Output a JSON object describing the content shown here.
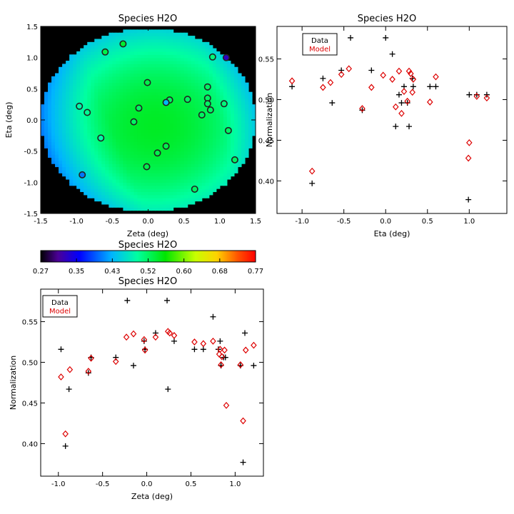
{
  "chart_data": [
    {
      "type": "heatmap",
      "title": "Species H2O",
      "xlabel": "Zeta (deg)",
      "ylabel": "Eta (deg)",
      "xlim": [
        -1.5,
        1.5
      ],
      "ylim": [
        -1.5,
        1.5
      ],
      "xticks": [
        "-1.5",
        "-1.0",
        "-0.5",
        "0.0",
        "0.5",
        "1.0",
        "1.5"
      ],
      "yticks": [
        "-1.5",
        "-1.0",
        "-0.5",
        "0.0",
        "0.5",
        "1.0",
        "1.5"
      ],
      "colors": {
        "outside": "#000000",
        "ring": "#222222"
      },
      "points": [
        {
          "x": -0.6,
          "y": 1.09,
          "v": 0.53
        },
        {
          "x": -0.35,
          "y": 1.22,
          "v": 0.54
        },
        {
          "x": 0.9,
          "y": 1.01,
          "v": 0.51
        },
        {
          "x": 1.09,
          "y": 1.0,
          "v": 0.33
        },
        {
          "x": -0.01,
          "y": 0.6,
          "v": 0.53
        },
        {
          "x": 0.83,
          "y": 0.53,
          "v": 0.52
        },
        {
          "x": -0.96,
          "y": 0.22,
          "v": 0.49
        },
        {
          "x": -0.85,
          "y": 0.12,
          "v": 0.5
        },
        {
          "x": -0.13,
          "y": 0.19,
          "v": 0.52
        },
        {
          "x": 0.3,
          "y": 0.32,
          "v": 0.52
        },
        {
          "x": 0.25,
          "y": 0.28,
          "v": 0.44
        },
        {
          "x": 0.55,
          "y": 0.33,
          "v": 0.52
        },
        {
          "x": 0.83,
          "y": 0.35,
          "v": 0.52
        },
        {
          "x": 0.83,
          "y": 0.26,
          "v": 0.52
        },
        {
          "x": 1.06,
          "y": 0.26,
          "v": 0.51
        },
        {
          "x": 0.87,
          "y": 0.16,
          "v": 0.52
        },
        {
          "x": 0.75,
          "y": 0.08,
          "v": 0.52
        },
        {
          "x": -0.2,
          "y": -0.03,
          "v": 0.52
        },
        {
          "x": 1.12,
          "y": -0.17,
          "v": 0.52
        },
        {
          "x": -0.66,
          "y": -0.29,
          "v": 0.49
        },
        {
          "x": 0.25,
          "y": -0.42,
          "v": 0.53
        },
        {
          "x": 0.13,
          "y": -0.53,
          "v": 0.53
        },
        {
          "x": 1.21,
          "y": -0.64,
          "v": 0.52
        },
        {
          "x": -0.02,
          "y": -0.75,
          "v": 0.53
        },
        {
          "x": -0.92,
          "y": -0.88,
          "v": 0.41
        },
        {
          "x": 0.65,
          "y": -1.11,
          "v": 0.52
        }
      ]
    },
    {
      "type": "colorbar",
      "title": "Species H2O",
      "range": [
        0.27,
        0.77
      ],
      "ticks": [
        "0.27",
        "0.35",
        "0.43",
        "0.52",
        "0.60",
        "0.68",
        "0.77"
      ]
    },
    {
      "type": "scatter",
      "title": "Species H2O",
      "xlabel": "Eta (deg)",
      "ylabel": "Normalization",
      "xlim": [
        -1.3,
        1.45
      ],
      "ylim": [
        0.36,
        0.59
      ],
      "xticks": [
        {
          "v": -1.0,
          "label": "-1.0"
        },
        {
          "v": -0.5,
          "label": "-0.5"
        },
        {
          "v": 0.0,
          "label": "0.0"
        },
        {
          "v": 0.5,
          "label": "0.5"
        },
        {
          "v": 1.0,
          "label": "1.0"
        }
      ],
      "yticks": [
        {
          "v": 0.4,
          "label": "0.40"
        },
        {
          "v": 0.45,
          "label": "0.45"
        },
        {
          "v": 0.5,
          "label": "0.50"
        },
        {
          "v": 0.55,
          "label": "0.55"
        }
      ],
      "legend": {
        "position": "top-left",
        "data_label": "Data",
        "model_label": "Model"
      },
      "colors": {
        "data": "#000000",
        "model": "#dd0000"
      },
      "series": [
        {
          "name": "Data",
          "marker": "plus",
          "points": [
            [
              -1.12,
              0.516
            ],
            [
              -0.88,
              0.397
            ],
            [
              -0.75,
              0.526
            ],
            [
              -0.64,
              0.496
            ],
            [
              -0.53,
              0.536
            ],
            [
              -0.42,
              0.576
            ],
            [
              -0.28,
              0.487
            ],
            [
              -0.17,
              0.536
            ],
            [
              0.0,
              0.576
            ],
            [
              0.08,
              0.556
            ],
            [
              0.12,
              0.467
            ],
            [
              0.16,
              0.506
            ],
            [
              0.19,
              0.496
            ],
            [
              0.22,
              0.516
            ],
            [
              0.26,
              0.496
            ],
            [
              0.28,
              0.467
            ],
            [
              0.32,
              0.526
            ],
            [
              0.33,
              0.516
            ],
            [
              0.53,
              0.516
            ],
            [
              0.6,
              0.516
            ],
            [
              0.99,
              0.377
            ],
            [
              1.0,
              0.506
            ],
            [
              1.09,
              0.506
            ],
            [
              1.21,
              0.506
            ]
          ]
        },
        {
          "name": "Model",
          "marker": "diamond",
          "points": [
            [
              -1.12,
              0.523
            ],
            [
              -0.88,
              0.412
            ],
            [
              -0.75,
              0.515
            ],
            [
              -0.66,
              0.521
            ],
            [
              -0.53,
              0.531
            ],
            [
              -0.44,
              0.538
            ],
            [
              -0.28,
              0.489
            ],
            [
              -0.17,
              0.515
            ],
            [
              -0.03,
              0.53
            ],
            [
              0.08,
              0.525
            ],
            [
              0.12,
              0.491
            ],
            [
              0.16,
              0.535
            ],
            [
              0.19,
              0.483
            ],
            [
              0.22,
              0.51
            ],
            [
              0.26,
              0.498
            ],
            [
              0.28,
              0.535
            ],
            [
              0.3,
              0.532
            ],
            [
              0.32,
              0.509
            ],
            [
              0.33,
              0.525
            ],
            [
              0.53,
              0.497
            ],
            [
              0.6,
              0.528
            ],
            [
              0.99,
              0.428
            ],
            [
              1.0,
              0.447
            ],
            [
              1.09,
              0.504
            ],
            [
              1.21,
              0.502
            ]
          ]
        }
      ]
    },
    {
      "type": "scatter",
      "title": "Species H2O",
      "xlabel": "Zeta (deg)",
      "ylabel": "Normalization",
      "xlim": [
        -1.2,
        1.32
      ],
      "ylim": [
        0.36,
        0.59
      ],
      "xticks": [
        {
          "v": -1.0,
          "label": "-1.0"
        },
        {
          "v": -0.5,
          "label": "-0.5"
        },
        {
          "v": 0.0,
          "label": "0.0"
        },
        {
          "v": 0.5,
          "label": "0.5"
        },
        {
          "v": 1.0,
          "label": "1.0"
        }
      ],
      "yticks": [
        {
          "v": 0.4,
          "label": "0.40"
        },
        {
          "v": 0.45,
          "label": "0.45"
        },
        {
          "v": 0.5,
          "label": "0.50"
        },
        {
          "v": 0.55,
          "label": "0.55"
        }
      ],
      "legend": {
        "position": "top-left",
        "data_label": "Data",
        "model_label": "Model"
      },
      "colors": {
        "data": "#000000",
        "model": "#dd0000"
      },
      "series": [
        {
          "name": "Data",
          "marker": "plus",
          "points": [
            [
              -0.97,
              0.516
            ],
            [
              -0.92,
              0.397
            ],
            [
              -0.88,
              0.467
            ],
            [
              -0.66,
              0.487
            ],
            [
              -0.63,
              0.506
            ],
            [
              -0.35,
              0.506
            ],
            [
              -0.22,
              0.576
            ],
            [
              -0.15,
              0.496
            ],
            [
              -0.03,
              0.526
            ],
            [
              -0.02,
              0.516
            ],
            [
              0.1,
              0.536
            ],
            [
              0.23,
              0.576
            ],
            [
              0.24,
              0.467
            ],
            [
              0.31,
              0.526
            ],
            [
              0.54,
              0.516
            ],
            [
              0.64,
              0.516
            ],
            [
              0.75,
              0.556
            ],
            [
              0.81,
              0.516
            ],
            [
              0.83,
              0.526
            ],
            [
              0.84,
              0.496
            ],
            [
              0.87,
              0.506
            ],
            [
              0.89,
              0.506
            ],
            [
              1.06,
              0.496
            ],
            [
              1.09,
              0.377
            ],
            [
              1.11,
              0.536
            ],
            [
              1.21,
              0.496
            ]
          ]
        },
        {
          "name": "Model",
          "marker": "diamond",
          "points": [
            [
              -0.97,
              0.482
            ],
            [
              -0.92,
              0.412
            ],
            [
              -0.87,
              0.491
            ],
            [
              -0.66,
              0.489
            ],
            [
              -0.63,
              0.505
            ],
            [
              -0.35,
              0.501
            ],
            [
              -0.23,
              0.531
            ],
            [
              -0.15,
              0.535
            ],
            [
              -0.03,
              0.528
            ],
            [
              -0.02,
              0.515
            ],
            [
              0.1,
              0.531
            ],
            [
              0.24,
              0.538
            ],
            [
              0.26,
              0.536
            ],
            [
              0.31,
              0.533
            ],
            [
              0.54,
              0.525
            ],
            [
              0.64,
              0.523
            ],
            [
              0.75,
              0.526
            ],
            [
              0.82,
              0.51
            ],
            [
              0.83,
              0.516
            ],
            [
              0.84,
              0.497
            ],
            [
              0.85,
              0.507
            ],
            [
              0.88,
              0.515
            ],
            [
              0.9,
              0.447
            ],
            [
              1.06,
              0.497
            ],
            [
              1.09,
              0.428
            ],
            [
              1.12,
              0.515
            ],
            [
              1.21,
              0.521
            ]
          ]
        }
      ]
    }
  ]
}
